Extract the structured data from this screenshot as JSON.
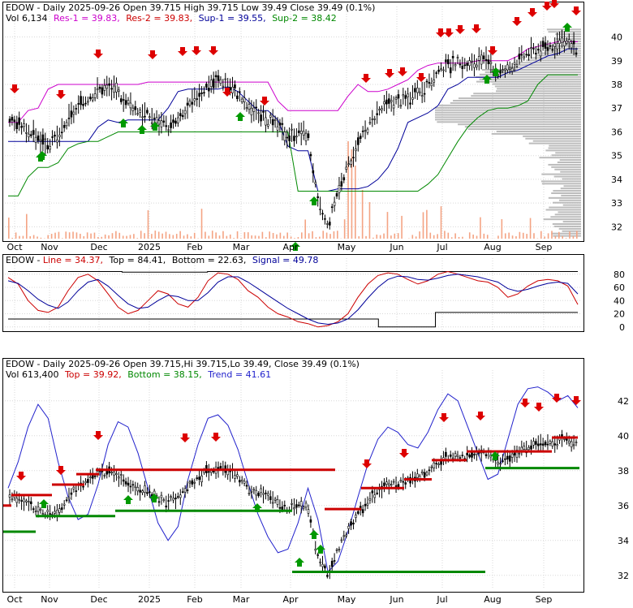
{
  "colors": {
    "frame": "#000000",
    "bg": "#ffffff",
    "grid": "#d8d8d8",
    "down": "#000000",
    "up": "#000000",
    "resistance": "#cc00cc",
    "support1": "#000099",
    "support2": "#008800",
    "res2": "#cc0000",
    "volume_bars": "#f4a484",
    "volume_profile": "#b0b0b0",
    "macd_line": "#cc0000",
    "macd_signal": "#000099",
    "trend": "#2222cc",
    "arrow_sell": "#dd0000",
    "arrow_buy": "#009900"
  },
  "panel1": {
    "header": {
      "line1": "EDOW - Daily 2025-09-26 Open 39.715  High 39.715  Low 39.49  Close 39.49 (0.1%)",
      "vol_label": "Vol 6,134",
      "res1_label": "Res-1 = 39.83,",
      "res2_label": "Res-2 = 39.83,",
      "sup1_label": "Sup-1 = 39.55,",
      "sup2_label": "Sup-2 = 38.42"
    }
  },
  "panel2": {
    "header": {
      "prefix": "EDOW - ",
      "line_label": "Line = 34.37,",
      "top_label": "Top = 84.41,",
      "bottom_label": "Bottom = 22.63,",
      "signal_label": "Signal = 49.78"
    }
  },
  "panel3": {
    "header": {
      "line1": "EDOW - Daily 2025-09-26 Open 39.715,Hi 39.715,Lo 39.49,  Close 39.49 (0.1%)",
      "vol_label": "Vol 613,400",
      "top_label": "Top = 39.92,",
      "bottom_label": "Bottom = 38.15,",
      "trend_label": "Trend = 41.61"
    }
  },
  "chart_data": [
    {
      "type": "line",
      "title": "EDOW - Daily 2025-09-26 Open 39.715  High 39.715  Low 39.49  Close 39.49 (0.1%)",
      "x_tick_labels": [
        "Oct",
        "Nov",
        "Dec",
        "2025",
        "Feb",
        "Mar",
        "Apr",
        "May",
        "Jun",
        "Jul",
        "Aug",
        "Sep"
      ],
      "y_tick_labels": [
        "40",
        "39",
        "38",
        "37",
        "36",
        "35",
        "34",
        "33",
        "32"
      ],
      "ylim": [
        31.5,
        40.6
      ],
      "series": [
        {
          "name": "Close",
          "values": [
            36.5,
            36.3,
            36.0,
            35.7,
            35.5,
            35.8,
            36.6,
            37.1,
            37.5,
            37.8,
            37.9,
            37.6,
            37.2,
            36.9,
            36.7,
            36.4,
            36.2,
            36.5,
            37.0,
            37.6,
            38.0,
            38.2,
            38.0,
            37.6,
            37.0,
            36.8,
            36.5,
            36.2,
            35.8,
            36.0,
            35.9,
            33.0,
            32.0,
            33.5,
            34.5,
            35.5,
            36.2,
            36.8,
            37.2,
            37.3,
            37.4,
            37.6,
            37.9,
            38.4,
            38.8,
            38.9,
            38.8,
            38.9,
            39.0,
            38.5,
            38.6,
            39.0,
            39.3,
            39.5,
            39.6,
            39.7,
            39.8,
            39.5
          ]
        },
        {
          "name": "Res-1",
          "values": [
            36.4,
            36.4,
            36.9,
            37.0,
            37.8,
            38.0,
            38.0,
            38.0,
            38.0,
            38.0,
            38.0,
            38.0,
            38.0,
            38.0,
            38.1,
            38.1,
            38.1,
            38.1,
            38.1,
            38.1,
            38.1,
            38.1,
            38.1,
            38.1,
            38.1,
            38.1,
            38.1,
            37.3,
            36.9,
            36.9,
            36.9,
            36.9,
            36.9,
            36.9,
            37.5,
            38.0,
            37.7,
            37.7,
            37.8,
            38.0,
            38.2,
            38.6,
            38.8,
            38.9,
            38.9,
            38.9,
            38.9,
            39.0,
            39.0,
            39.0,
            39.0,
            39.2,
            39.5,
            39.6,
            39.7,
            39.8,
            39.8,
            39.8
          ]
        },
        {
          "name": "Sup-1",
          "values": [
            35.6,
            35.6,
            35.6,
            35.6,
            35.6,
            35.6,
            35.6,
            35.6,
            35.6,
            36.2,
            36.5,
            36.4,
            36.5,
            36.5,
            36.5,
            36.5,
            37.0,
            37.7,
            37.8,
            37.8,
            37.8,
            37.8,
            37.9,
            37.7,
            37.3,
            36.9,
            36.9,
            36.5,
            35.4,
            35.2,
            35.2,
            33.5,
            33.5,
            33.6,
            33.6,
            33.6,
            33.7,
            34.0,
            34.5,
            35.3,
            36.4,
            36.6,
            36.8,
            37.1,
            37.8,
            38.0,
            38.3,
            38.3,
            38.3,
            38.3,
            38.5,
            38.6,
            38.8,
            39.0,
            39.2,
            39.3,
            39.5,
            39.5
          ]
        },
        {
          "name": "Sup-2",
          "values": [
            33.3,
            33.3,
            34.1,
            34.5,
            34.5,
            34.7,
            35.3,
            35.5,
            35.6,
            35.6,
            35.8,
            36.0,
            36.0,
            36.0,
            36.0,
            36.0,
            36.0,
            36.0,
            36.0,
            36.0,
            36.0,
            36.0,
            36.0,
            36.0,
            36.0,
            36.0,
            36.0,
            36.0,
            36.0,
            33.5,
            33.5,
            33.5,
            33.5,
            33.5,
            33.5,
            33.5,
            33.5,
            33.5,
            33.5,
            33.5,
            33.5,
            33.5,
            33.8,
            34.2,
            34.9,
            35.6,
            36.2,
            36.6,
            36.9,
            37.0,
            37.0,
            37.1,
            37.3,
            38.0,
            38.4,
            38.4,
            38.4,
            38.4
          ]
        }
      ]
    },
    {
      "type": "line",
      "title": "EDOW - Line = 34.37, Top = 84.41, Bottom = 22.63, Signal = 49.78",
      "y_tick_labels": [
        "80",
        "60",
        "40",
        "20",
        "0"
      ],
      "ylim": [
        -4,
        92
      ],
      "series": [
        {
          "name": "Line",
          "values": [
            75,
            65,
            40,
            25,
            22,
            30,
            55,
            75,
            80,
            70,
            50,
            30,
            20,
            25,
            40,
            55,
            50,
            35,
            30,
            45,
            70,
            82,
            80,
            72,
            55,
            45,
            30,
            20,
            15,
            8,
            5,
            0,
            2,
            8,
            20,
            45,
            65,
            78,
            82,
            80,
            72,
            65,
            70,
            80,
            84,
            80,
            75,
            70,
            68,
            60,
            45,
            50,
            62,
            70,
            72,
            70,
            62,
            34
          ]
        },
        {
          "name": "Signal",
          "values": [
            70,
            66,
            55,
            42,
            33,
            28,
            38,
            55,
            68,
            72,
            62,
            48,
            35,
            28,
            30,
            40,
            48,
            46,
            40,
            40,
            52,
            68,
            76,
            76,
            68,
            58,
            48,
            38,
            28,
            20,
            12,
            6,
            4,
            6,
            12,
            26,
            44,
            60,
            72,
            77,
            76,
            72,
            71,
            74,
            78,
            80,
            78,
            76,
            72,
            68,
            58,
            54,
            57,
            62,
            66,
            68,
            66,
            50
          ]
        }
      ]
    },
    {
      "type": "line",
      "title": "EDOW - Daily 2025-09-26 Open 39.715,Hi 39.715,Lo 39.49,  Close 39.49 (0.1%)",
      "x_tick_labels": [
        "Oct",
        "Nov",
        "Dec",
        "2025",
        "Feb",
        "Mar",
        "Apr",
        "May",
        "Jun",
        "Jul",
        "Aug",
        "Sep"
      ],
      "y_tick_labels": [
        "42",
        "40",
        "38",
        "36",
        "34",
        "32"
      ],
      "ylim": [
        31.2,
        43.2
      ],
      "series": [
        {
          "name": "Close",
          "values": [
            36.5,
            36.3,
            36.0,
            35.7,
            35.5,
            35.8,
            36.6,
            37.1,
            37.5,
            37.8,
            37.9,
            37.6,
            37.2,
            36.9,
            36.7,
            36.4,
            36.2,
            36.5,
            37.0,
            37.6,
            38.0,
            38.2,
            38.0,
            37.6,
            37.0,
            36.8,
            36.5,
            36.2,
            35.8,
            36.0,
            35.9,
            33.0,
            32.0,
            33.5,
            34.5,
            35.5,
            36.2,
            36.8,
            37.2,
            37.3,
            37.4,
            37.6,
            37.9,
            38.4,
            38.8,
            38.9,
            38.8,
            38.9,
            39.0,
            38.5,
            38.6,
            39.0,
            39.3,
            39.5,
            39.6,
            39.7,
            39.8,
            39.5
          ]
        },
        {
          "name": "Trend",
          "values": [
            37.0,
            38.5,
            40.5,
            41.8,
            41.0,
            38.5,
            36.5,
            35.2,
            35.5,
            37.2,
            39.5,
            40.8,
            40.5,
            39.0,
            37.0,
            35.0,
            34.0,
            34.8,
            37.5,
            39.5,
            41.0,
            41.2,
            40.6,
            39.2,
            37.3,
            35.5,
            34.2,
            33.3,
            33.5,
            35.0,
            37.0,
            35.2,
            32.2,
            32.8,
            34.5,
            36.5,
            38.4,
            39.8,
            40.5,
            40.2,
            39.5,
            39.3,
            40.2,
            41.5,
            42.4,
            42.0,
            40.5,
            39.0,
            37.5,
            37.8,
            39.8,
            41.8,
            42.7,
            42.8,
            42.5,
            42.0,
            42.3,
            41.6
          ]
        }
      ]
    }
  ]
}
